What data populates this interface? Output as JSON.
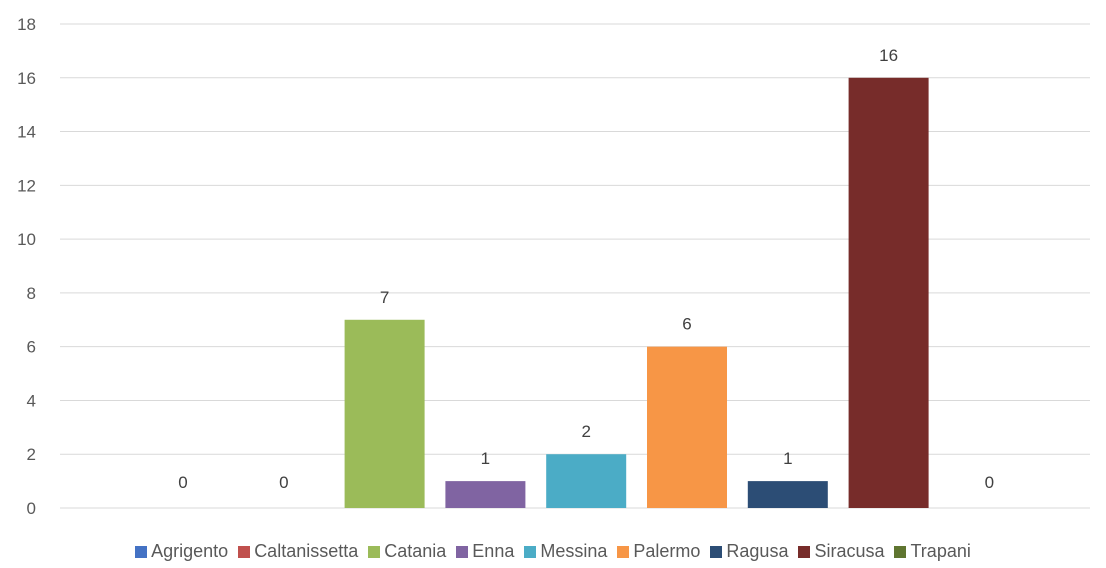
{
  "chart_data": {
    "type": "bar",
    "categories": [
      "Agrigento",
      "Caltanissetta",
      "Catania",
      "Enna",
      "Messina",
      "Palermo",
      "Ragusa",
      "Siracusa",
      "Trapani"
    ],
    "values": [
      0,
      0,
      7,
      1,
      2,
      6,
      1,
      16,
      0
    ],
    "colors": [
      "#4472C4",
      "#C0504D",
      "#9BBB59",
      "#8064A2",
      "#4BACC6",
      "#F79646",
      "#2C4D75",
      "#772C2A",
      "#5F7530"
    ],
    "ylim": [
      0,
      18
    ],
    "yticks": [
      "0",
      "2",
      "4",
      "6",
      "8",
      "10",
      "12",
      "14",
      "16",
      "18"
    ],
    "data_labels": [
      "0",
      "0",
      "7",
      "1",
      "2",
      "6",
      "1",
      "16",
      "0"
    ],
    "grid": true,
    "legend_position": "bottom",
    "title": "",
    "xlabel": "",
    "ylabel": ""
  }
}
